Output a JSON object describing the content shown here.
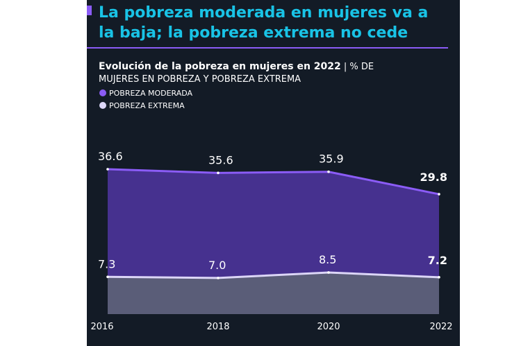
{
  "chart_data": {
    "type": "area",
    "title": "La pobreza moderada en mujeres va a la baja; la pobreza extrema no cede",
    "subtitle_bold": "Evolución de la pobreza en mujeres en 2022",
    "subtitle": "| % DE MUJERES EN POBREZA Y POBREZA EXTREMA",
    "categories": [
      "2016",
      "2018",
      "2020",
      "2022"
    ],
    "series": [
      {
        "name": "POBREZA MODERADA",
        "color": "#8b5cf6",
        "fill": "#46318f",
        "values": [
          36.6,
          35.6,
          35.9,
          29.8
        ]
      },
      {
        "name": "POBREZA EXTREMA",
        "color": "#dcd6f7",
        "fill": "#5a5d78",
        "values": [
          7.3,
          7.0,
          8.5,
          7.2
        ],
        "value_labels": [
          "7.3",
          "7.0",
          "8.5",
          "7.2"
        ]
      }
    ]
  }
}
